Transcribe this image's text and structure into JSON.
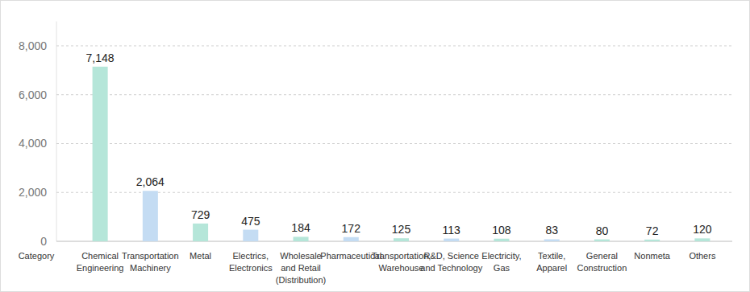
{
  "chart_data": {
    "type": "bar",
    "x_label": "Category",
    "categories": [
      "Chemical\nEngineering",
      "Transportation\nMachinery",
      "Metal",
      "Electrics,\nElectronics",
      "Wholesale\nand Retail\n(Distribution)",
      "Pharmaceutical",
      "Transportation,\nWarehouse",
      "R&D,  Science\nand Technology",
      "Electricity,\nGas",
      "Textile,\nApparel",
      "General\nConstruction",
      "Nonmeta",
      "Others"
    ],
    "values": [
      7148,
      2064,
      729,
      475,
      184,
      172,
      125,
      113,
      108,
      83,
      80,
      72,
      120
    ],
    "value_labels": [
      "7,148",
      "2,064",
      "729",
      "475",
      "184",
      "172",
      "125",
      "113",
      "108",
      "83",
      "80",
      "72",
      "120"
    ],
    "colors": [
      "#b5e6d9",
      "#c4dcf3",
      "#b5e6d9",
      "#c4dcf3",
      "#b5e6d9",
      "#c4dcf3",
      "#b5e6d9",
      "#c4dcf3",
      "#b5e6d9",
      "#c4dcf3",
      "#b5e6d9",
      "#b5e6d9",
      "#b5e6d9"
    ],
    "ylim": [
      0,
      9000
    ],
    "yticks": [
      0,
      {
        "value": 2000,
        "label": "2,000"
      },
      {
        "value": 4000,
        "label": "4,000"
      },
      {
        "value": 6000,
        "label": "6,000"
      },
      {
        "value": 8000,
        "label": "8,000"
      }
    ],
    "grid": true,
    "data_labels": true
  }
}
